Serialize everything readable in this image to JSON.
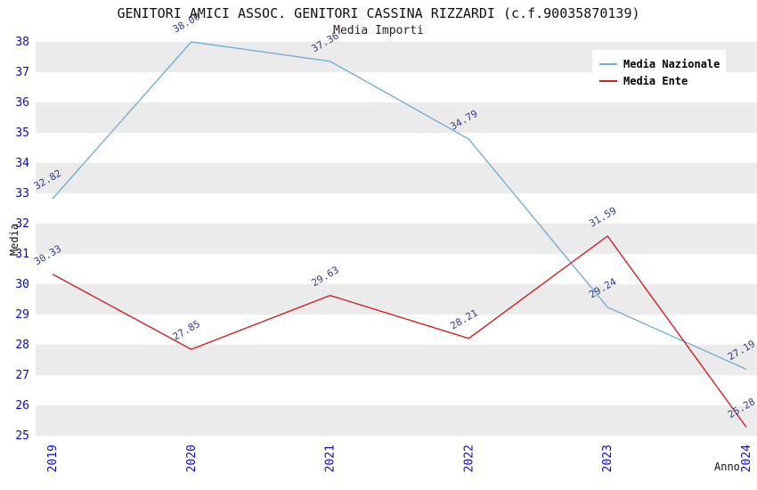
{
  "chart_data": {
    "type": "line",
    "title": "GENITORI AMICI ASSOC. GENITORI CASSINA RIZZARDI (c.f.90035870139)",
    "subtitle": "Media Importi",
    "xlabel": "Anno",
    "ylabel": "Media",
    "x": [
      2019,
      2020,
      2021,
      2022,
      2023,
      2024
    ],
    "series": [
      {
        "name": "Media Nazionale",
        "color": "#74afd6",
        "values": [
          32.82,
          38.0,
          37.36,
          34.79,
          29.24,
          27.19
        ]
      },
      {
        "name": "Media Ente",
        "color": "#d42020",
        "values": [
          30.33,
          27.85,
          29.63,
          28.21,
          31.59,
          25.28
        ]
      }
    ],
    "ylim": [
      25,
      38
    ],
    "y_tick_step": 1,
    "legend_position": "top-right",
    "grid": "horizontal-bands",
    "colors": {
      "band": "#ebebeb",
      "tick_text": "#0b0bbb",
      "data_label_text": "#2f3a8f",
      "title_text": "#111111"
    }
  }
}
